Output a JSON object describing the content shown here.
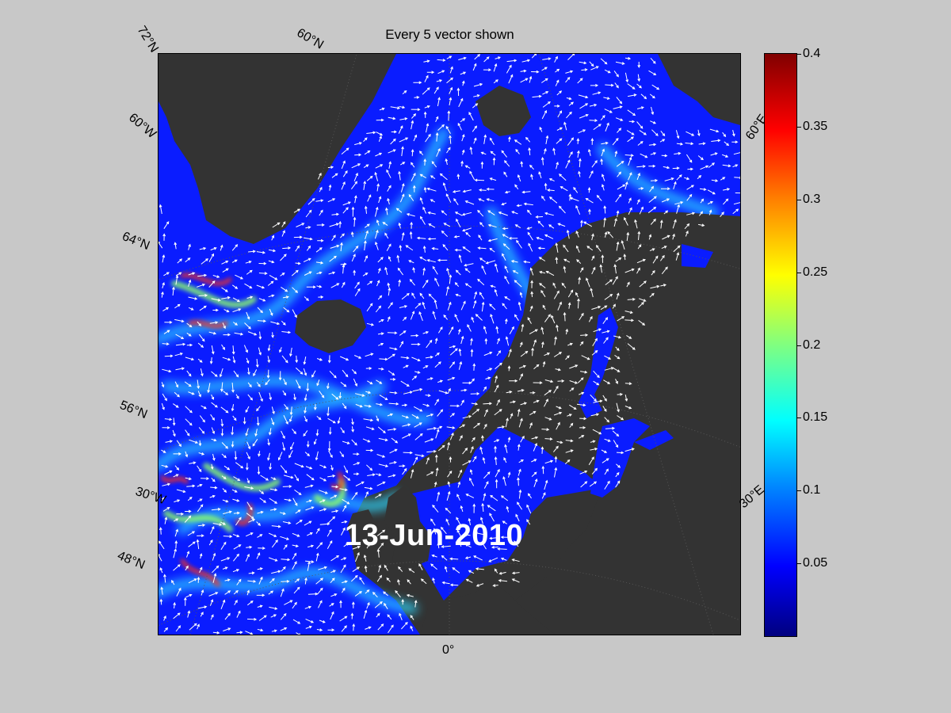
{
  "title": "Every 5 vector shown",
  "date_stamp": "13-Jun-2010",
  "latitude_labels": [
    "72°N",
    "60°N",
    "64°N",
    "56°N",
    "48°N",
    "60°W",
    "30°W"
  ],
  "longitude_labels": [
    "0°",
    "60°E",
    "30°E"
  ],
  "colorbar": {
    "min": 0,
    "max": 0.4,
    "colormap": "jet",
    "ticks": [
      "0.4",
      "0.35",
      "0.3",
      "0.25",
      "0.2",
      "0.15",
      "0.1",
      "0.05"
    ]
  },
  "colors": {
    "figure_background": "#c8c8c8",
    "land": "#333333",
    "ocean_low": "#0a1cff",
    "vector_arrows": "#ffffff"
  }
}
